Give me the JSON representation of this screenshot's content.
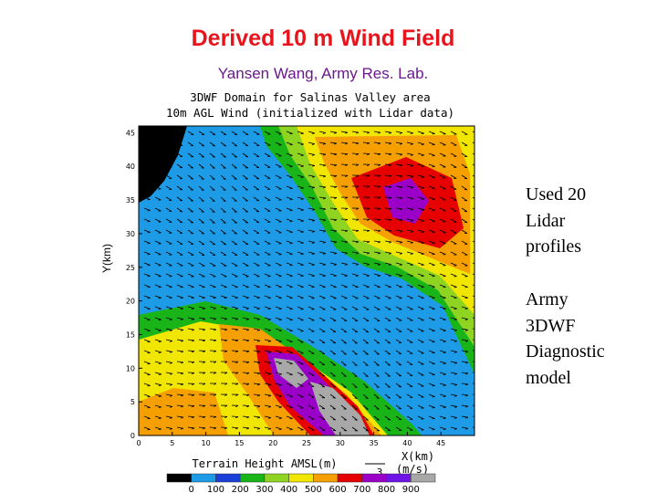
{
  "header": {
    "title": "Derived 10 m Wind Field",
    "subtitle": "Yansen Wang, Army Res. Lab."
  },
  "figure": {
    "title_lines": [
      "3DWF Domain for Salinas Valley area",
      "10m AGL Wind (initialized with Lidar data)"
    ],
    "ylabel": "Y(km)",
    "xlabel": "X(km)",
    "xlim": [
      0,
      50
    ],
    "ylim": [
      0,
      46
    ],
    "xticks": [
      0,
      5,
      10,
      15,
      20,
      25,
      30,
      35,
      40,
      45
    ],
    "yticks": [
      0,
      5,
      10,
      15,
      20,
      25,
      30,
      35,
      40,
      45
    ],
    "colorbar": {
      "label": "Terrain Height AMSL(m)",
      "colors": [
        "#000000",
        "#1e9be6",
        "#1a3fd8",
        "#18b418",
        "#8ed420",
        "#f0e600",
        "#f5a000",
        "#e60000",
        "#9a00c8",
        "#6e14e6",
        "#a8a8a8"
      ],
      "ticks": [
        0,
        100,
        200,
        300,
        400,
        500,
        600,
        700,
        800,
        900
      ]
    },
    "vector_scale": {
      "value": 3,
      "unit": "(m/s)"
    }
  },
  "bullets": [
    {
      "lines": [
        "Used 20",
        "Lidar",
        "profiles"
      ]
    },
    {
      "lines": [
        "Army",
        "3DWF",
        "Diagnostic",
        "model"
      ]
    }
  ]
}
